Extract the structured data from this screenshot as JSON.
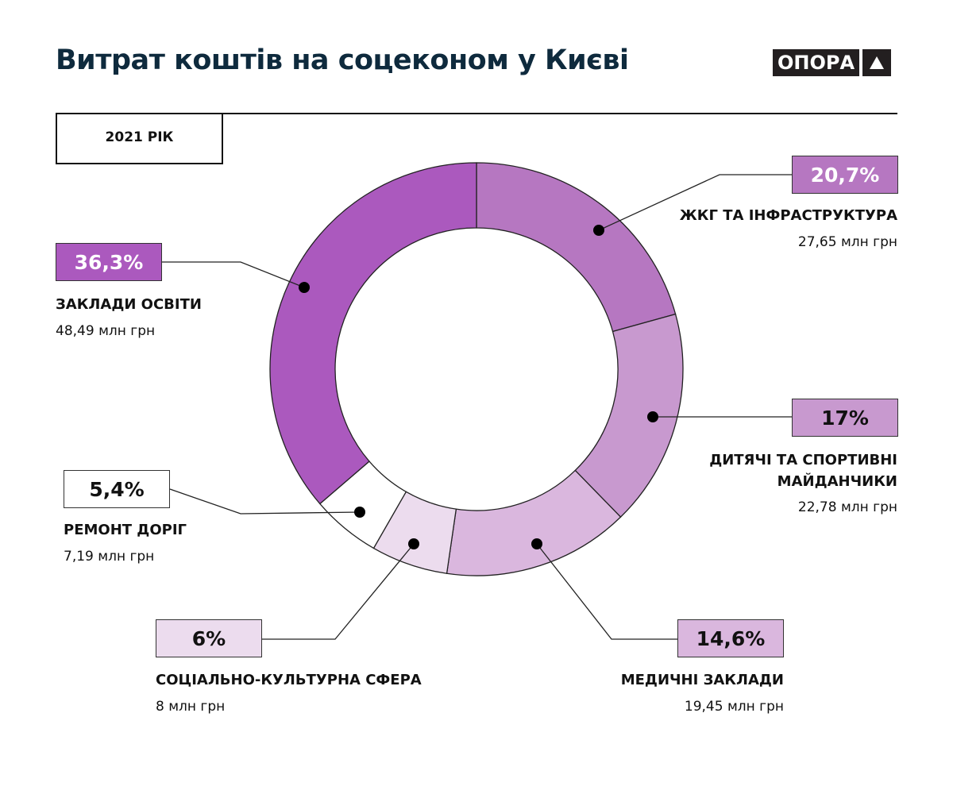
{
  "title": "Витрат коштів на соцеконом у Києві",
  "logo": {
    "text": "ОПОРА"
  },
  "year_label": "2021 РІК",
  "chart_data": {
    "type": "pie",
    "variant": "donut",
    "title": "Витрат коштів на соцеконом у Києві",
    "subtitle": "2021 РІК",
    "unit": "млн грн",
    "slices": [
      {
        "label": "ЖКГ ТА ІНФРАСТРУКТУРА",
        "percent": 20.7,
        "percent_label": "20,7%",
        "value": 27.65,
        "value_label": "27,65 млн грн",
        "color": "#b677c1",
        "text_color": "#ffffff"
      },
      {
        "label": "ДИТЯЧІ ТА СПОРТИВНІ МАЙДАНЧИКИ",
        "percent": 17,
        "percent_label": "17%",
        "value": 22.78,
        "value_label": "22,78 млн грн",
        "color": "#c899cf",
        "text_color": "#111111"
      },
      {
        "label": "МЕДИЧНІ ЗАКЛАДИ",
        "percent": 14.6,
        "percent_label": "14,6%",
        "value": 19.45,
        "value_label": "19,45 млн грн",
        "color": "#dab7de",
        "text_color": "#111111"
      },
      {
        "label": "СОЦІАЛЬНО-КУЛЬТУРНА СФЕРА",
        "percent": 6,
        "percent_label": "6%",
        "value": 8,
        "value_label": "8 млн грн",
        "color": "#ecdcee",
        "text_color": "#111111"
      },
      {
        "label": "РЕМОНТ ДОРІГ",
        "percent": 5.4,
        "percent_label": "5,4%",
        "value": 7.19,
        "value_label": "7,19 млн грн",
        "color": "#ffffff",
        "text_color": "#111111"
      },
      {
        "label": "ЗАКЛАДИ ОСВІТИ",
        "percent": 36.3,
        "percent_label": "36,3%",
        "value": 48.49,
        "value_label": "48,49 млн грн",
        "color": "#ab59be",
        "text_color": "#ffffff"
      }
    ]
  }
}
